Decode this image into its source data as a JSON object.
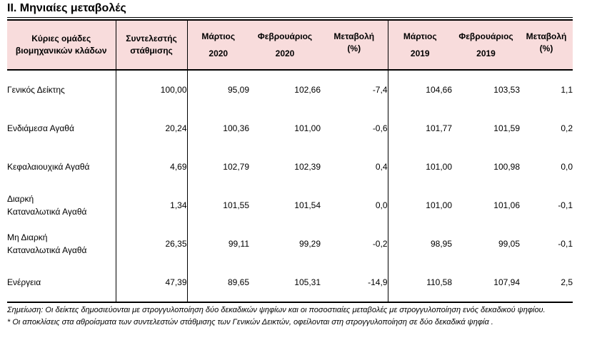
{
  "section_title": "ΙΙ. Μηνιαίες μεταβολές",
  "header": {
    "group_col": [
      "Κύριες ομάδες",
      "βιομηχανικών κλάδων"
    ],
    "weight_col": [
      "Συντελεστής",
      "στάθμισης"
    ],
    "mar2020": [
      "Μάρτιος",
      "2020"
    ],
    "feb2020": [
      "Φεβρουάριος",
      "2020"
    ],
    "chg2020": [
      "Μεταβολή",
      "(%)"
    ],
    "mar2019": [
      "Μάρτιος",
      "2019"
    ],
    "feb2019": [
      "Φεβρουάριος",
      "2019"
    ],
    "chg2019": [
      "Μεταβολή",
      "(%)"
    ]
  },
  "rows": [
    {
      "label": [
        "Γενικός Δείκτης"
      ],
      "weight": "100,00",
      "mar2020": "95,09",
      "feb2020": "102,66",
      "chg2020": "-7,4",
      "mar2019": "104,66",
      "feb2019": "103,53",
      "chg2019": "1,1"
    },
    {
      "label": [
        "Ενδιάμεσα Αγαθά"
      ],
      "weight": "20,24",
      "mar2020": "100,36",
      "feb2020": "101,00",
      "chg2020": "-0,6",
      "mar2019": "101,77",
      "feb2019": "101,59",
      "chg2019": "0,2"
    },
    {
      "label": [
        "Κεφαλαιουχικά Αγαθά"
      ],
      "weight": "4,69",
      "mar2020": "102,79",
      "feb2020": "102,39",
      "chg2020": "0,4",
      "mar2019": "101,00",
      "feb2019": "100,98",
      "chg2019": "0,0"
    },
    {
      "label": [
        "Διαρκή",
        "Καταναλωτικά Αγαθά"
      ],
      "weight": "1,34",
      "mar2020": "101,55",
      "feb2020": "101,54",
      "chg2020": "0,0",
      "mar2019": "101,00",
      "feb2019": "101,06",
      "chg2019": "-0,1"
    },
    {
      "label": [
        "Μη Διαρκή",
        "Καταναλωτικά Αγαθά"
      ],
      "weight": "26,35",
      "mar2020": "99,11",
      "feb2020": "99,29",
      "chg2020": "-0,2",
      "mar2019": "98,95",
      "feb2019": "99,05",
      "chg2019": "-0,1"
    },
    {
      "label": [
        "Ενέργεια"
      ],
      "weight": "47,39",
      "mar2020": "89,65",
      "feb2020": "105,31",
      "chg2020": "-14,9",
      "mar2019": "110,58",
      "feb2019": "107,94",
      "chg2019": "2,5"
    }
  ],
  "notes": {
    "note1": "Σημείωση: Οι δείκτες δημοσιεύονται με στρογγυλοποίηση δύο δεκαδικών ψηφίων και οι ποσοστιαίες μεταβολές με στρογγυλοποίηση ενός δεκαδικού ψηφίου.",
    "note2": "* Οι αποκλίσεις στα αθροίσματα των συντελεστών στάθμισης των Γενικών Δεικτών, οφείλονται στη στρογγυλοποίηση σε δύο δεκαδικά ψηφία ."
  },
  "colors": {
    "header_bg": "#f8dcdc",
    "rule": "#000000"
  }
}
